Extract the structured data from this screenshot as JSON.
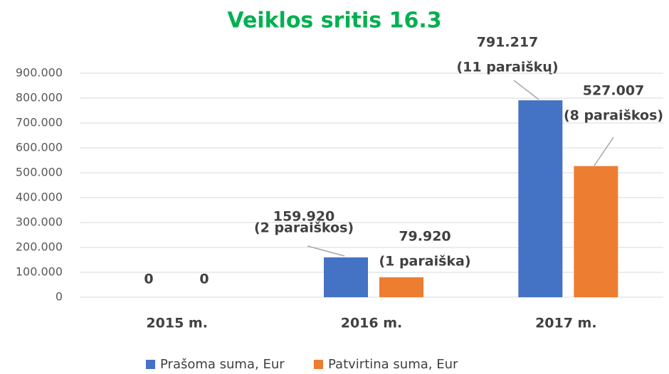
{
  "chart_data": {
    "type": "bar",
    "title": "Veiklos sritis 16.3",
    "title_color": "#00b050",
    "categories": [
      "2015 m.",
      "2016 m.",
      "2017 m."
    ],
    "series": [
      {
        "name": "Prašoma suma, Eur",
        "color": "#4472c4",
        "values": [
          0,
          159920,
          791217
        ],
        "value_labels": [
          "0",
          "159.920",
          "791.217"
        ],
        "notes": [
          null,
          "(2 paraiškos)",
          "(11 paraiškų)"
        ]
      },
      {
        "name": "Patvirtina suma, Eur",
        "color": "#ed7d31",
        "values": [
          0,
          79920,
          527007
        ],
        "value_labels": [
          "0",
          "79.920",
          "527.007"
        ],
        "notes": [
          null,
          "(1 paraiška)",
          "(8 paraiškos)"
        ]
      }
    ],
    "ylim": [
      0,
      900000
    ],
    "yticks": [
      0,
      {
        "value": 100000,
        "label": "100.000"
      },
      {
        "value": 200000,
        "label": "200.000"
      },
      {
        "value": 300000,
        "label": "300.000"
      },
      {
        "value": 400000,
        "label": "400.000"
      },
      {
        "value": 500000,
        "label": "500.000"
      },
      {
        "value": 600000,
        "label": "600.000"
      },
      {
        "value": 700000,
        "label": "700.000"
      },
      {
        "value": 800000,
        "label": "800.000"
      },
      {
        "value": 900000,
        "label": "900.000"
      }
    ],
    "grid": true,
    "legend": "bottom"
  }
}
